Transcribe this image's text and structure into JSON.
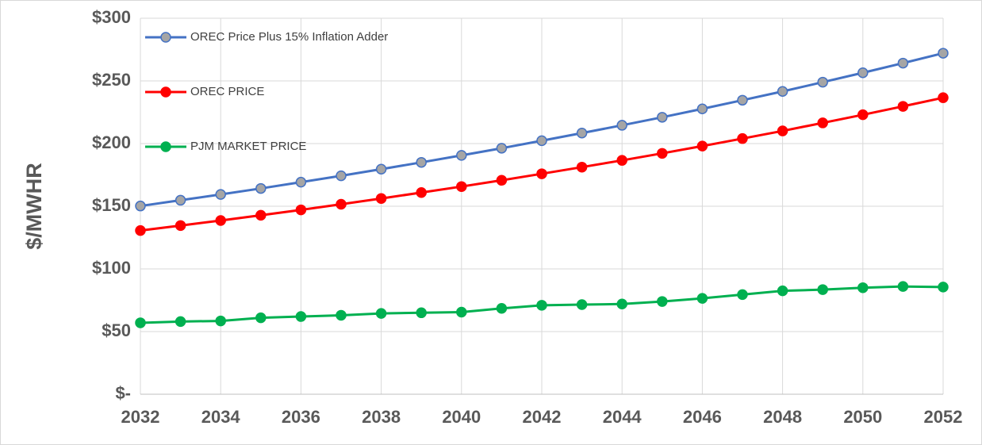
{
  "chart_data": {
    "type": "line",
    "y_label": "$/MWHR",
    "x": [
      2032,
      2033,
      2034,
      2035,
      2036,
      2037,
      2038,
      2039,
      2040,
      2041,
      2042,
      2043,
      2044,
      2045,
      2046,
      2047,
      2048,
      2049,
      2050,
      2051,
      2052
    ],
    "series": [
      {
        "name": "OREC Price Plus 15% Inflation Adder",
        "color": "#4472c4",
        "marker_color": "#a5a5a5",
        "values": [
          150.2,
          154.8,
          159.4,
          164.2,
          169.2,
          174.3,
          179.6,
          185.0,
          190.6,
          196.3,
          202.3,
          208.4,
          214.6,
          221.0,
          227.7,
          234.6,
          241.6,
          249.0,
          256.5,
          264.2,
          272.1
        ]
      },
      {
        "name": "OREC PRICE",
        "color": "#ff0000",
        "marker_color": "#ff0000",
        "values": [
          130.6,
          134.6,
          138.6,
          142.8,
          147.1,
          151.6,
          156.2,
          160.9,
          165.7,
          170.7,
          175.9,
          181.2,
          186.6,
          192.2,
          198.0,
          204.0,
          210.1,
          216.5,
          223.0,
          229.7,
          236.6
        ]
      },
      {
        "name": "PJM MARKET PRICE",
        "color": "#00b050",
        "marker_color": "#00b050",
        "values": [
          57,
          58,
          58.5,
          61,
          62,
          63,
          64.5,
          65,
          65.5,
          68.5,
          71,
          71.5,
          72,
          74,
          76.5,
          79.5,
          82.5,
          83.5,
          85,
          86,
          85.5
        ]
      }
    ],
    "xlim": [
      2032,
      2052
    ],
    "xticks": [
      2032,
      2034,
      2036,
      2038,
      2040,
      2042,
      2044,
      2046,
      2048,
      2050,
      2052
    ],
    "ylim": [
      0,
      300
    ],
    "yticks": [
      {
        "value": 0,
        "label": "$-"
      },
      {
        "value": 50,
        "label": "$50"
      },
      {
        "value": 100,
        "label": "$100"
      },
      {
        "value": 150,
        "label": "$150"
      },
      {
        "value": 200,
        "label": "$200"
      },
      {
        "value": 250,
        "label": "$250"
      },
      {
        "value": 300,
        "label": "$300"
      }
    ],
    "grid": true,
    "legend": "upper-left"
  }
}
